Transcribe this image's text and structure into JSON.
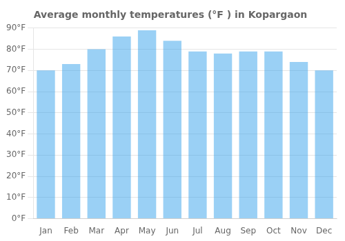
{
  "chart_data": {
    "type": "bar",
    "title": "Average monthly temperatures (°F ) in Kopargaon",
    "categories": [
      "Jan",
      "Feb",
      "Mar",
      "Apr",
      "May",
      "Jun",
      "Jul",
      "Aug",
      "Sep",
      "Oct",
      "Nov",
      "Dec"
    ],
    "values": [
      70,
      73,
      80,
      86,
      89,
      84,
      79,
      78,
      79,
      79,
      74,
      70
    ],
    "ylim": [
      0,
      90
    ],
    "yticks": [
      {
        "value": 0,
        "label": "0°F"
      },
      {
        "value": 10,
        "label": "10°F"
      },
      {
        "value": 20,
        "label": "20°F"
      },
      {
        "value": 30,
        "label": "30°F"
      },
      {
        "value": 40,
        "label": "40°F"
      },
      {
        "value": 50,
        "label": "50°F"
      },
      {
        "value": 60,
        "label": "60°F"
      },
      {
        "value": 70,
        "label": "70°F"
      },
      {
        "value": 80,
        "label": "80°F"
      },
      {
        "value": 90,
        "label": "90°F"
      }
    ],
    "grid": true
  }
}
